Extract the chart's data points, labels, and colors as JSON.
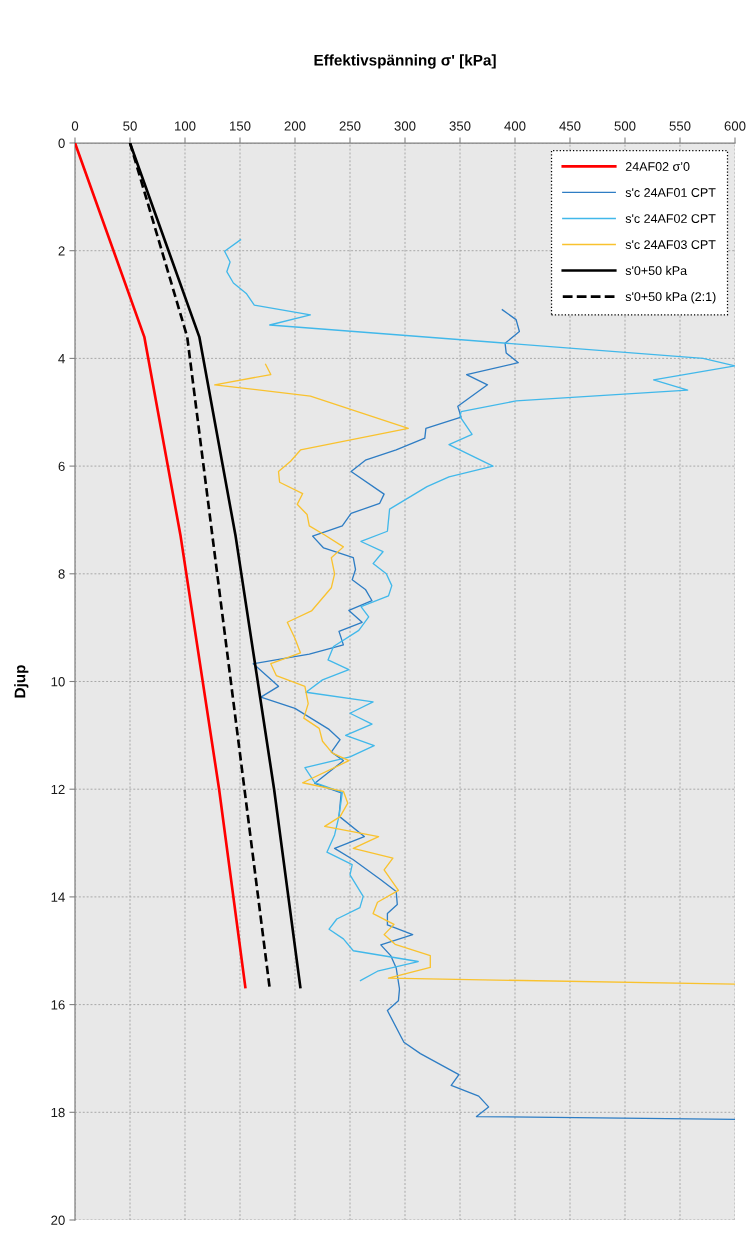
{
  "chart_data": {
    "type": "line",
    "xlabel": "Effektivspänning σ' [kPa]",
    "ylabel": "Djup",
    "xlim": [
      0,
      600
    ],
    "xticks": [
      0,
      50,
      100,
      150,
      200,
      250,
      300,
      350,
      400,
      450,
      500,
      550,
      600
    ],
    "ylim": [
      20,
      0
    ],
    "yticks": [
      0,
      2,
      4,
      6,
      8,
      10,
      12,
      14,
      16,
      18,
      20
    ],
    "grid": true,
    "legend": "top right",
    "series": [
      {
        "name": "24AF02 σ’0",
        "color": "#ff0000",
        "line_style": "solid",
        "x": [
          0,
          63,
          96,
          131,
          155
        ],
        "values": [
          0,
          3.6,
          7.3,
          12,
          15.7
        ]
      },
      {
        "name": "s'c 24AF01 CPT",
        "color": "#2e7dc4",
        "x": [
          388,
          401,
          404,
          391,
          392,
          403,
          356,
          375,
          348,
          351,
          319,
          318,
          292,
          264,
          251,
          281,
          277,
          251,
          243,
          216,
          226,
          253,
          255,
          252,
          264,
          270,
          249,
          261,
          240,
          244,
          213,
          162,
          185,
          169,
          200,
          231,
          241,
          233,
          244,
          218,
          242,
          240,
          263,
          236,
          253,
          278,
          292,
          293,
          284,
          284,
          307,
          278,
          287,
          292,
          295,
          294,
          284,
          299,
          314,
          349,
          342,
          367,
          376,
          365,
          600
        ],
        "values": [
          3.09,
          3.28,
          3.5,
          3.72,
          3.9,
          4.08,
          4.3,
          4.49,
          4.89,
          5.09,
          5.3,
          5.48,
          5.7,
          5.89,
          6.1,
          6.52,
          6.69,
          6.88,
          7.11,
          7.3,
          7.52,
          7.7,
          7.92,
          8.11,
          8.29,
          8.5,
          8.68,
          8.9,
          9.07,
          9.32,
          9.49,
          9.67,
          10.09,
          10.29,
          10.5,
          10.89,
          11.08,
          11.31,
          11.47,
          11.89,
          12.07,
          12.5,
          12.88,
          13.1,
          13.31,
          13.68,
          13.9,
          14.14,
          14.31,
          14.52,
          14.7,
          14.89,
          15.09,
          15.32,
          15.71,
          15.93,
          16.11,
          16.7,
          16.91,
          17.3,
          17.5,
          17.7,
          17.9,
          18.08,
          18.13
        ]
      },
      {
        "name": "s'c 24AF02 CPT",
        "color": "#41b8ea",
        "x": [
          151,
          136,
          141,
          138,
          144,
          156,
          163,
          214,
          177,
          571,
          600,
          526,
          557,
          401,
          351,
          350,
          361,
          340,
          380,
          340,
          320,
          286,
          284,
          260,
          280,
          271,
          283,
          288,
          285,
          260,
          267,
          258,
          235,
          230,
          249,
          225,
          210,
          271,
          250,
          270,
          246,
          272,
          250,
          209,
          218,
          243,
          240,
          236,
          229,
          252,
          250,
          262,
          259,
          238,
          231,
          244,
          253,
          312,
          275,
          259
        ],
        "values": [
          1.79,
          2.01,
          2.21,
          2.39,
          2.6,
          2.8,
          3.01,
          3.19,
          3.38,
          4.0,
          4.14,
          4.4,
          4.59,
          4.79,
          4.99,
          5.08,
          5.41,
          5.6,
          6.0,
          6.2,
          6.38,
          6.8,
          7.21,
          7.4,
          7.59,
          7.81,
          8.0,
          8.22,
          8.41,
          8.61,
          8.8,
          9.05,
          9.35,
          9.6,
          9.78,
          9.97,
          10.2,
          10.38,
          10.59,
          10.79,
          11.0,
          11.19,
          11.4,
          11.6,
          11.88,
          12.06,
          12.5,
          12.85,
          13.17,
          13.4,
          13.59,
          13.99,
          14.2,
          14.41,
          14.6,
          14.78,
          15.0,
          15.2,
          15.38,
          15.56
        ]
      },
      {
        "name": "s'c 24AF03 CPT",
        "color": "#f9c22e",
        "x": [
          173,
          178,
          127,
          214,
          303,
          205,
          196,
          185,
          186,
          207,
          202,
          211,
          213,
          227,
          244,
          233,
          236,
          233,
          215,
          193,
          200,
          205,
          178,
          183,
          209,
          212,
          208,
          222,
          225,
          234,
          249,
          207,
          244,
          248,
          241,
          227,
          276,
          253,
          289,
          281,
          294,
          275,
          271,
          290,
          281,
          291,
          323,
          323,
          285,
          600
        ],
        "values": [
          4.1,
          4.3,
          4.49,
          4.7,
          5.3,
          5.7,
          5.91,
          6.1,
          6.3,
          6.51,
          6.71,
          6.9,
          7.11,
          7.28,
          7.5,
          7.7,
          8.0,
          8.26,
          8.69,
          8.9,
          9.2,
          9.47,
          9.67,
          9.89,
          10.09,
          10.41,
          10.68,
          10.87,
          11.11,
          11.33,
          11.47,
          11.88,
          12.04,
          12.26,
          12.51,
          12.69,
          12.88,
          13.1,
          13.28,
          13.5,
          13.88,
          14.1,
          14.31,
          14.51,
          14.7,
          14.88,
          15.09,
          15.31,
          15.51,
          15.62
        ]
      },
      {
        "name": "s'0+50 kPa",
        "color": "#000000",
        "line_style": "solid",
        "x": [
          50,
          113,
          146,
          181,
          205
        ],
        "values": [
          0,
          3.6,
          7.3,
          12,
          15.7
        ]
      },
      {
        "name": "s'0+50 kPa (2:1)",
        "color": "#000000",
        "line_style": "dashed",
        "x": [
          50,
          102,
          177
        ],
        "values": [
          0,
          3.6,
          15.7
        ]
      }
    ]
  }
}
